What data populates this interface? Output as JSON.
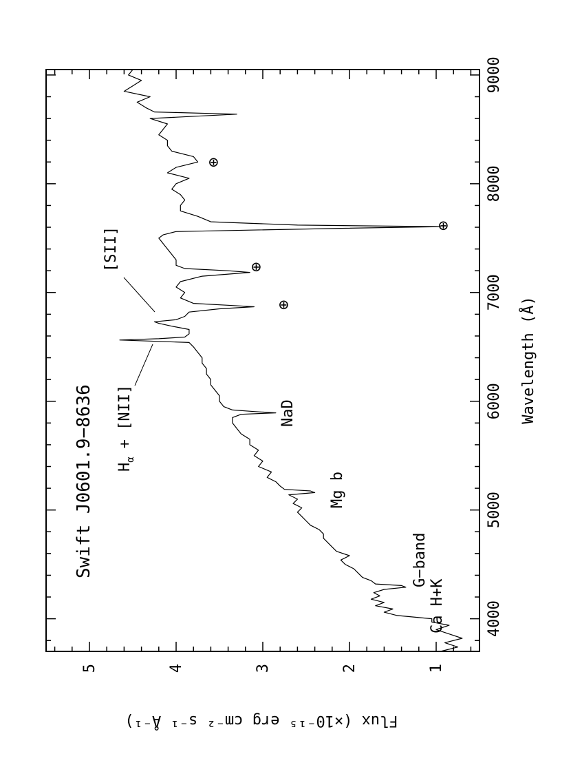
{
  "chart_data": {
    "type": "line",
    "orientation": "rotated-90-ccw",
    "title": "Swift J0601.9−8636",
    "xlabel": "Wavelength (Å)",
    "ylabel": "Flux (×10⁻¹⁵ erg cm⁻² s⁻¹ Å⁻¹)",
    "xlim": [
      3700,
      9050
    ],
    "ylim": [
      0.5,
      5.5
    ],
    "x_ticks": [
      "4000",
      "5000",
      "6000",
      "7000",
      "8000",
      "9000"
    ],
    "y_ticks": [
      "1",
      "2",
      "3",
      "4",
      "5"
    ],
    "grid": false,
    "series": [
      {
        "x": [
          3700,
          3740,
          3780,
          3820,
          3860,
          3900,
          3940,
          3970,
          4000,
          4030,
          4060,
          4090,
          4120,
          4150,
          4180,
          4210,
          4240,
          4270,
          4290,
          4305,
          4320,
          4350,
          4380,
          4420,
          4460,
          4500,
          4540,
          4580,
          4620,
          4660,
          4700,
          4740,
          4780,
          4820,
          4860,
          4900,
          4940,
          4980,
          5020,
          5060,
          5100,
          5140,
          5160,
          5175,
          5190,
          5220,
          5260,
          5300,
          5350,
          5400,
          5450,
          5500,
          5550,
          5600,
          5650,
          5700,
          5750,
          5800,
          5850,
          5880,
          5893,
          5905,
          5920,
          5950,
          6000,
          6050,
          6100,
          6150,
          6200,
          6250,
          6300,
          6350,
          6400,
          6450,
          6500,
          6540,
          6563,
          6575,
          6590,
          6620,
          6660,
          6690,
          6716,
          6731,
          6750,
          6780,
          6820,
          6850,
          6869,
          6880,
          6900,
          6950,
          7000,
          7050,
          7100,
          7150,
          7185,
          7200,
          7220,
          7250,
          7300,
          7350,
          7400,
          7450,
          7500,
          7530,
          7560,
          7590,
          7605,
          7620,
          7650,
          7700,
          7750,
          7800,
          7850,
          7900,
          7950,
          8000,
          8050,
          8100,
          8150,
          8200,
          8250,
          8300,
          8350,
          8400,
          8450,
          8500,
          8550,
          8600,
          8640,
          8660,
          8700,
          8750,
          8800,
          8850,
          8900,
          8950,
          9000,
          9050
        ],
        "values": [
          0.95,
          0.75,
          0.9,
          0.7,
          0.85,
          1.0,
          0.85,
          1.05,
          1.05,
          1.45,
          1.6,
          1.5,
          1.7,
          1.6,
          1.75,
          1.65,
          1.72,
          1.6,
          1.35,
          1.4,
          1.7,
          1.75,
          1.85,
          1.9,
          1.95,
          2.05,
          2.1,
          2.0,
          2.15,
          2.2,
          2.25,
          2.3,
          2.3,
          2.35,
          2.45,
          2.5,
          2.55,
          2.6,
          2.55,
          2.65,
          2.6,
          2.7,
          2.4,
          2.45,
          2.75,
          2.8,
          2.85,
          2.95,
          2.9,
          3.05,
          3.0,
          3.1,
          3.05,
          3.15,
          3.15,
          3.25,
          3.3,
          3.35,
          3.35,
          3.25,
          2.85,
          3.1,
          3.35,
          3.45,
          3.5,
          3.5,
          3.55,
          3.6,
          3.6,
          3.65,
          3.65,
          3.7,
          3.7,
          3.75,
          3.8,
          3.85,
          4.65,
          4.2,
          3.9,
          3.85,
          3.85,
          4.05,
          4.2,
          4.25,
          4.0,
          3.9,
          3.85,
          3.5,
          3.1,
          3.35,
          3.8,
          3.95,
          3.9,
          4.0,
          3.95,
          3.7,
          3.15,
          3.4,
          3.9,
          4.0,
          4.0,
          4.05,
          4.1,
          4.15,
          4.2,
          4.15,
          4.0,
          2.1,
          0.95,
          2.6,
          3.6,
          3.75,
          3.95,
          3.95,
          3.9,
          3.95,
          4.05,
          4.0,
          3.85,
          4.1,
          4.0,
          3.75,
          3.8,
          4.05,
          4.1,
          4.1,
          4.2,
          4.15,
          4.1,
          4.3,
          3.3,
          4.25,
          4.35,
          4.45,
          4.3,
          4.6,
          4.5,
          4.4,
          4.55,
          4.5
        ]
      }
    ],
    "annotations": [
      {
        "id": "ca",
        "text": "Ca H+K",
        "x": 3950,
        "y": 1.05
      },
      {
        "id": "gband",
        "text": "G−band",
        "x": 4300,
        "y": 1.3
      },
      {
        "id": "mgb",
        "text": "Mg b",
        "x": 5175,
        "y": 2.3
      },
      {
        "id": "nad",
        "text": "NaD",
        "x": 5893,
        "y": 2.8
      },
      {
        "id": "halpha",
        "text": "H",
        "sub": "α",
        "rest": "+ [NII]",
        "x": 6563,
        "y": 4.65
      },
      {
        "id": "sii",
        "text": "[SII]",
        "x": 6731,
        "y": 4.25
      },
      {
        "id": "tell1",
        "text": "⊕",
        "x": 6869,
        "y": 2.8
      },
      {
        "id": "tell2",
        "text": "⊕",
        "x": 7185,
        "y": 3.1
      },
      {
        "id": "tell3",
        "text": "⊕",
        "x": 7605,
        "y": 1.0
      },
      {
        "id": "tell4",
        "text": "⊕",
        "x": 8200,
        "y": 3.65
      }
    ]
  }
}
